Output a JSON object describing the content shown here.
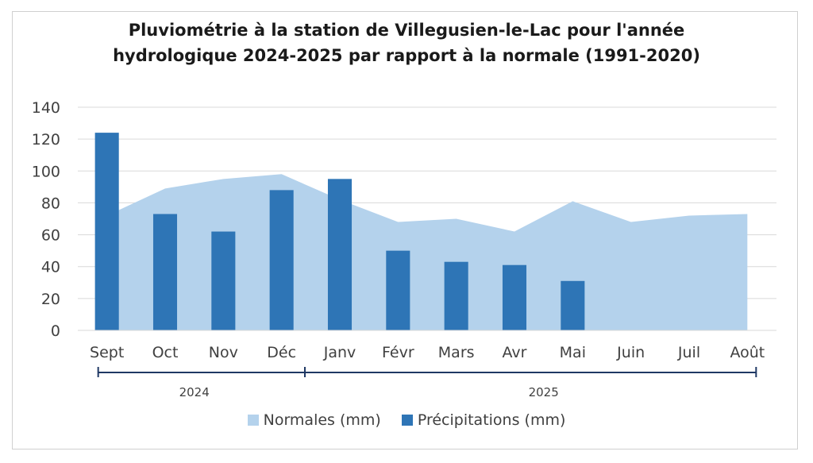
{
  "chart_data": {
    "type": "bar",
    "title_line1": "Pluviométrie à la station de Villegusien-le-Lac pour l'année",
    "title_line2": "hydrologique 2024-2025 par rapport à la normale (1991-2020)",
    "categories": [
      "Sept",
      "Oct",
      "Nov",
      "Déc",
      "Janv",
      "Févr",
      "Mars",
      "Avr",
      "Mai",
      "Juin",
      "Juil",
      "Août"
    ],
    "year_groups": [
      {
        "label": "2024",
        "months": [
          "Sept",
          "Oct",
          "Nov",
          "Déc"
        ]
      },
      {
        "label": "2025",
        "months": [
          "Janv",
          "Févr",
          "Mars",
          "Avr",
          "Mai",
          "Juin",
          "Juil",
          "Août"
        ]
      }
    ],
    "series": [
      {
        "name": "Normales (mm)",
        "type": "area",
        "color": "#b4d2ec",
        "values": [
          72,
          89,
          95,
          98,
          82,
          68,
          70,
          62,
          81,
          68,
          72,
          73
        ]
      },
      {
        "name": "Précipitations (mm)",
        "type": "bar",
        "color": "#2e75b6",
        "values": [
          124,
          73,
          62,
          88,
          95,
          50,
          43,
          41,
          31,
          null,
          null,
          null
        ]
      }
    ],
    "ylim": [
      0,
      140
    ],
    "yticks": [
      0,
      20,
      40,
      60,
      80,
      100,
      120,
      140
    ],
    "grid": true,
    "legend_position": "bottom"
  }
}
